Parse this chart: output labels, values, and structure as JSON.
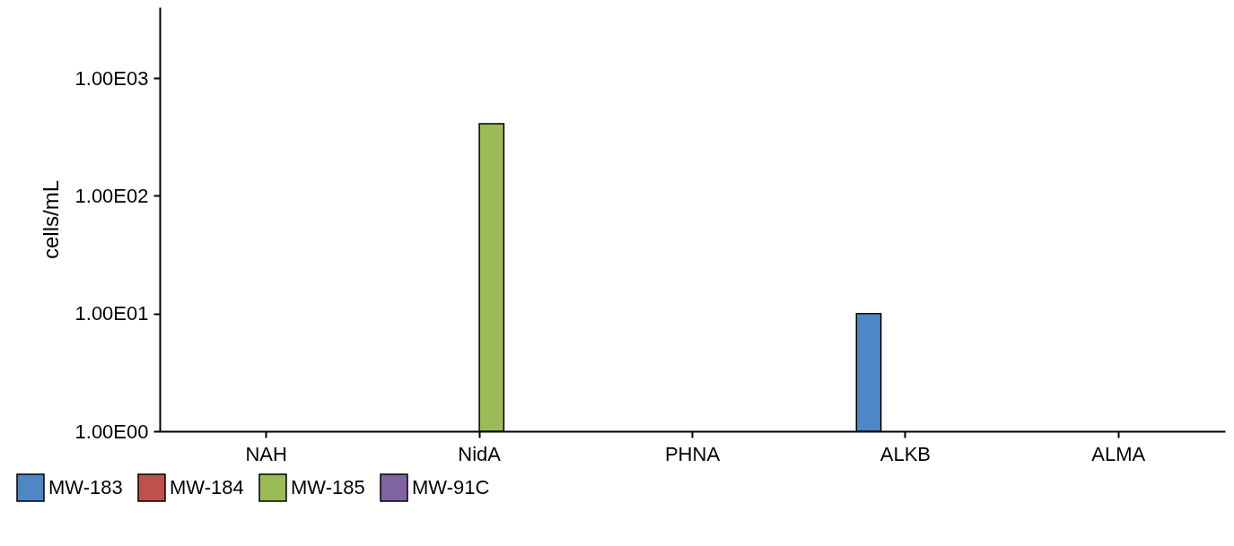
{
  "chart_data": {
    "type": "bar",
    "ylabel": "cells/mL",
    "categories": [
      "NAH",
      "NidA",
      "PHNA",
      "ALKB",
      "ALMA"
    ],
    "series": [
      {
        "name": "MW-183",
        "color": "#4f86c6",
        "values": [
          null,
          null,
          null,
          10,
          null
        ]
      },
      {
        "name": "MW-184",
        "color": "#c0504d",
        "values": [
          null,
          null,
          null,
          null,
          null
        ]
      },
      {
        "name": "MW-185",
        "color": "#9bbb59",
        "values": [
          null,
          410,
          null,
          null,
          null
        ]
      },
      {
        "name": "MW-91C",
        "color": "#8064a2",
        "values": [
          null,
          null,
          null,
          null,
          null
        ]
      }
    ],
    "log": true,
    "ylim": [
      1,
      4000
    ],
    "yticks": [
      {
        "value": 1,
        "label": "1.00E00"
      },
      {
        "value": 10,
        "label": "1.00E01"
      },
      {
        "value": 100,
        "label": "1.00E02"
      },
      {
        "value": 1000,
        "label": "1.00E03"
      }
    ],
    "grid": false,
    "legend": "bottom"
  }
}
